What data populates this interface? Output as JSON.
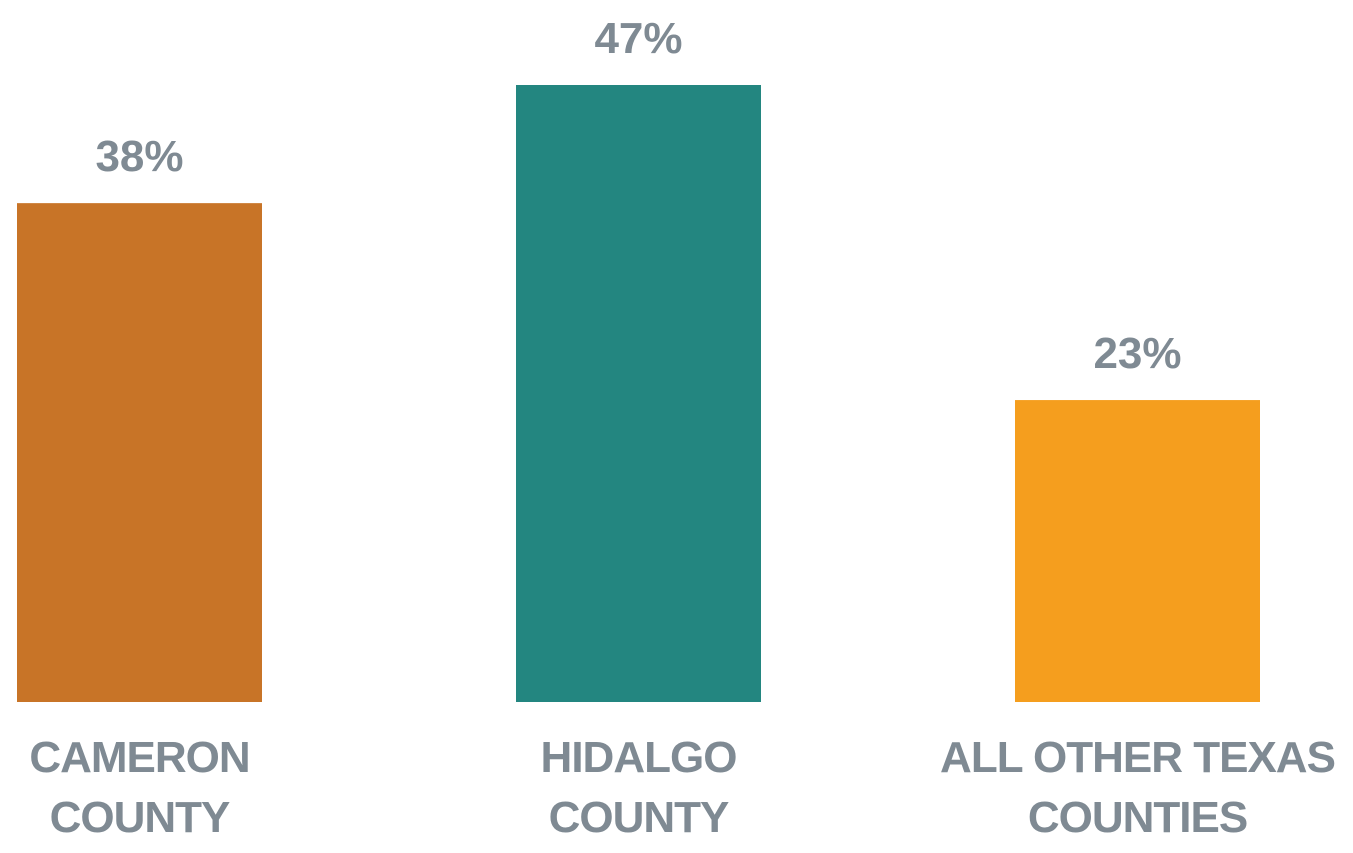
{
  "chart_data": {
    "type": "bar",
    "categories": [
      "CAMERON COUNTY",
      "HIDALGO COUNTY",
      "ALL OTHER TEXAS COUNTIES"
    ],
    "values": [
      38,
      47,
      23
    ],
    "value_labels": [
      "38%",
      "47%",
      "23%"
    ],
    "colors": [
      "#c87427",
      "#238680",
      "#f59e1e"
    ]
  }
}
